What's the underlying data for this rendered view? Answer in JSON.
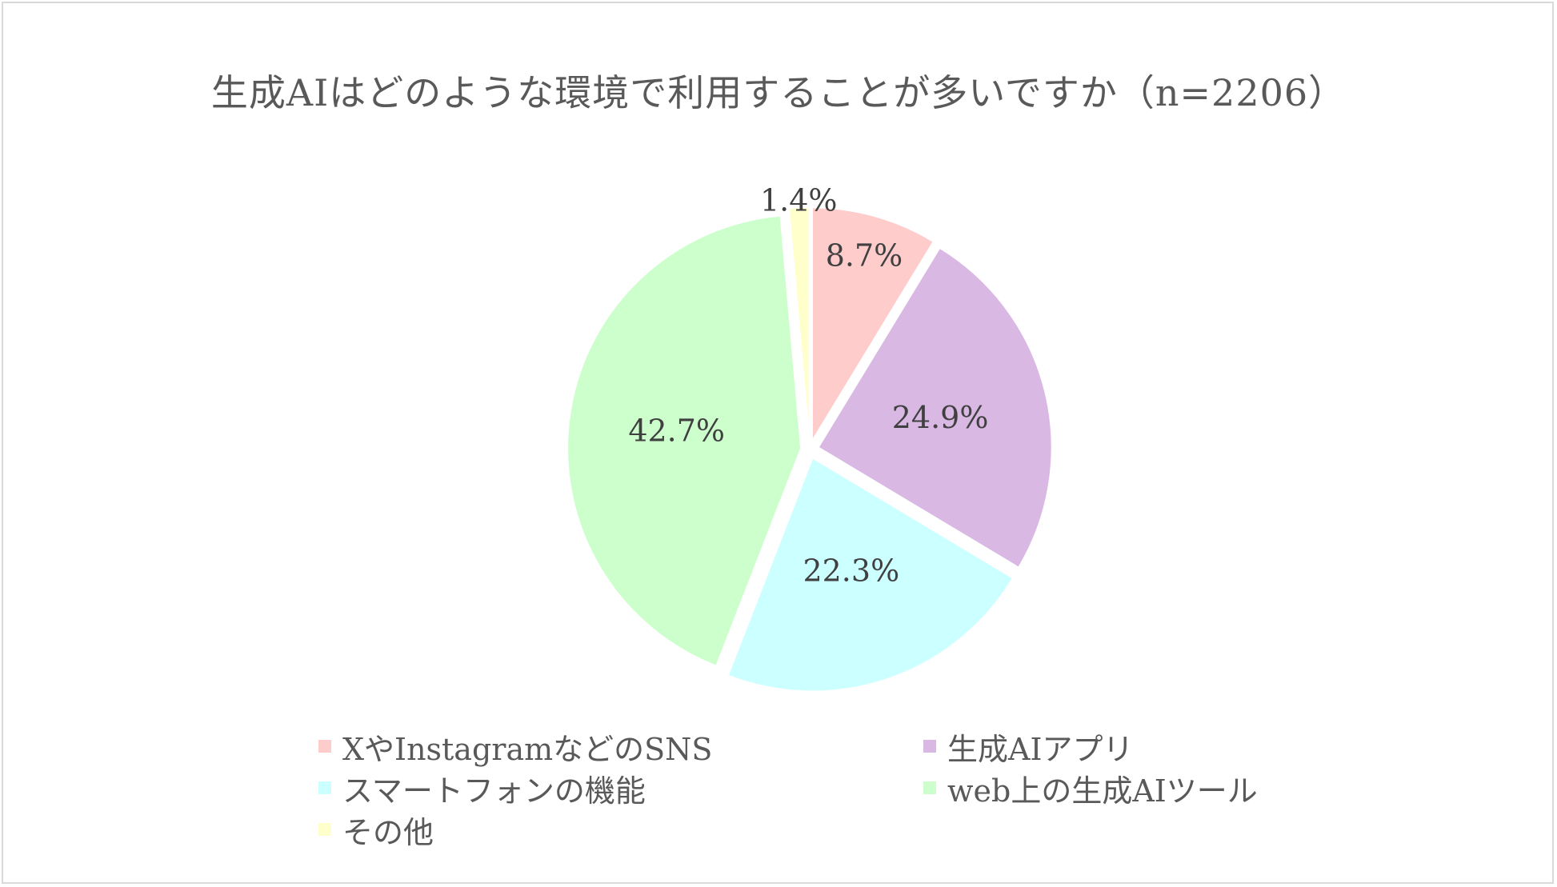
{
  "chart_data": {
    "type": "pie",
    "title": "生成AIはどのような環境で利用することが多いですか（n=2206）",
    "slices": [
      {
        "label": "XやInstagramなどのSNS",
        "value": 8.7,
        "display": "8.7%",
        "color": "#ffcccc"
      },
      {
        "label": "生成AIアプリ",
        "value": 24.9,
        "display": "24.9%",
        "color": "#d9b8e3"
      },
      {
        "label": "スマートフォンの機能",
        "value": 22.3,
        "display": "22.3%",
        "color": "#ccffff"
      },
      {
        "label": "web上の生成AIツール",
        "value": 42.7,
        "display": "42.7%",
        "color": "#ccffcc"
      },
      {
        "label": "その他",
        "value": 1.4,
        "display": "1.4%",
        "color": "#ffffcc"
      }
    ],
    "legend_position": "bottom",
    "start_angle": "12 o'clock",
    "direction": "clockwise"
  }
}
